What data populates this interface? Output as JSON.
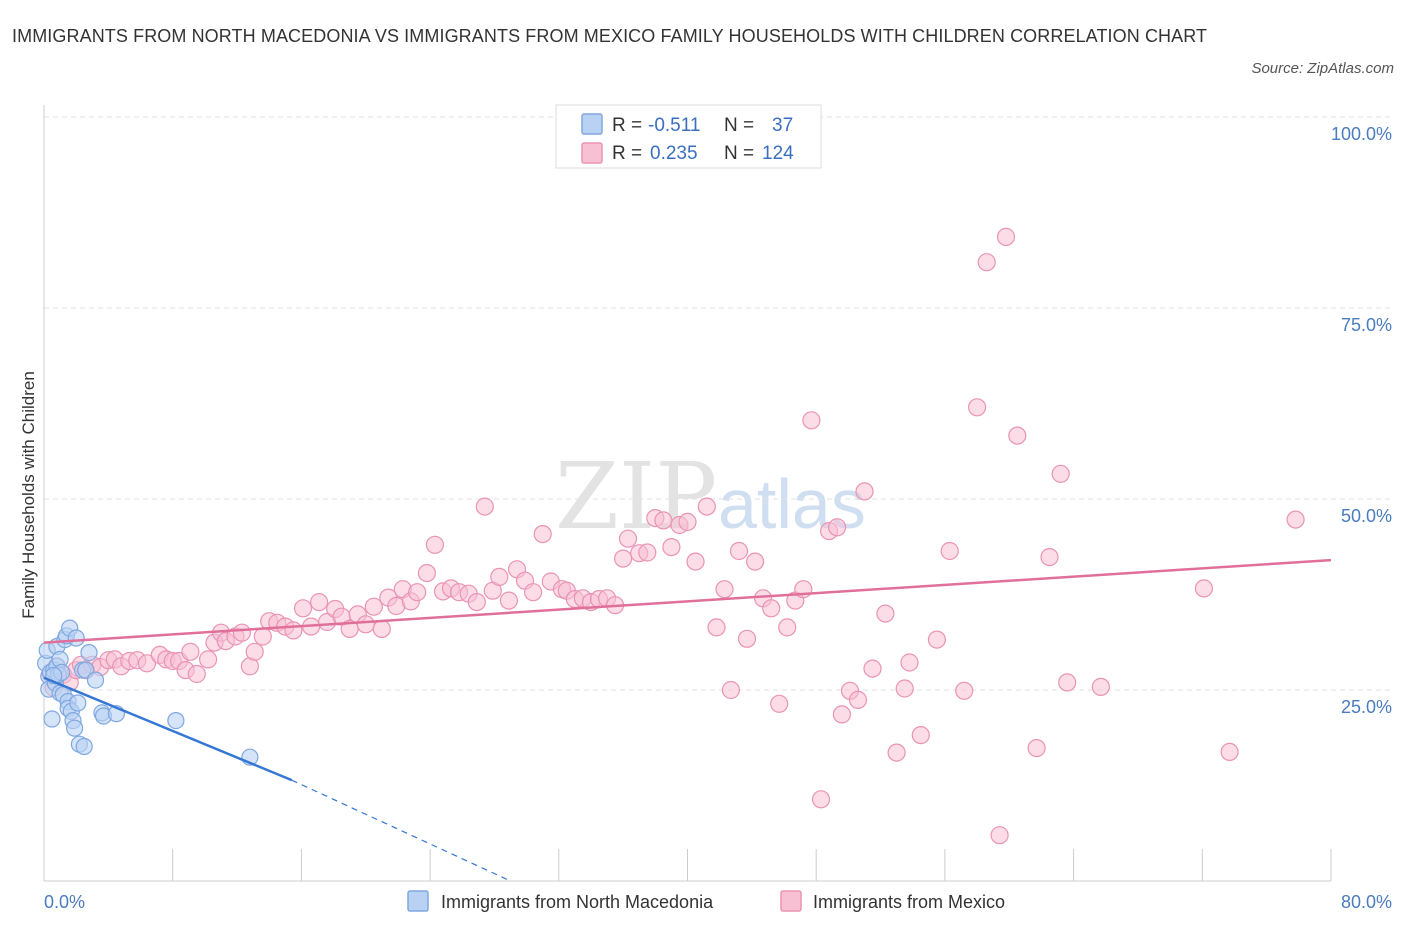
{
  "title": "IMMIGRANTS FROM NORTH MACEDONIA VS IMMIGRANTS FROM MEXICO FAMILY HOUSEHOLDS WITH CHILDREN CORRELATION CHART",
  "source": "Source: ZipAtlas.com",
  "watermark": {
    "zip": "ZIP",
    "atlas": "atlas"
  },
  "legend": {
    "r_label": "R =",
    "n_label": "N =",
    "series1": {
      "r": "-0.511",
      "n": "37"
    },
    "series2": {
      "r": "0.235",
      "n": "124"
    }
  },
  "colors": {
    "blue_fill": "#b9d2f3",
    "blue_stroke": "#7fa8e0",
    "blue_line": "#3477d4",
    "pink_fill": "#f7c0d3",
    "pink_stroke": "#ea94b4",
    "pink_line": "#e0709a"
  },
  "chart_data": {
    "type": "scatter",
    "title": "IMMIGRANTS FROM NORTH MACEDONIA VS IMMIGRANTS FROM MEXICO FAMILY HOUSEHOLDS WITH CHILDREN CORRELATION CHART",
    "ylabel": "Family Households with Children",
    "xlabel": "",
    "xlim": [
      0,
      80
    ],
    "ylim": [
      0,
      100
    ],
    "x_tick_labels": [
      {
        "value": 0,
        "label": "0.0%"
      },
      {
        "value": 80,
        "label": "80.0%"
      }
    ],
    "y_tick_labels": [
      {
        "value": 25,
        "label": "25.0%"
      },
      {
        "value": 50,
        "label": "50.0%"
      },
      {
        "value": 75,
        "label": "75.0%"
      },
      {
        "value": 100,
        "label": "100.0%"
      }
    ],
    "series": [
      {
        "name": "Immigrants from North Macedonia",
        "R": -0.511,
        "N": 37,
        "points": [
          [
            0.1,
            28.5
          ],
          [
            0.2,
            30.2
          ],
          [
            0.3,
            26.8
          ],
          [
            0.3,
            25.1
          ],
          [
            0.4,
            27.3
          ],
          [
            0.5,
            21.2
          ],
          [
            0.6,
            27.6
          ],
          [
            0.7,
            25.9
          ],
          [
            0.8,
            30.7
          ],
          [
            0.8,
            28.1
          ],
          [
            0.9,
            27.0
          ],
          [
            1.0,
            29.0
          ],
          [
            1.0,
            24.6
          ],
          [
            1.1,
            27.3
          ],
          [
            1.2,
            24.4
          ],
          [
            1.3,
            31.6
          ],
          [
            1.4,
            32.1
          ],
          [
            1.5,
            23.5
          ],
          [
            1.5,
            22.6
          ],
          [
            1.6,
            33.1
          ],
          [
            1.7,
            22.2
          ],
          [
            1.8,
            21.0
          ],
          [
            1.9,
            20.0
          ],
          [
            2.0,
            31.8
          ],
          [
            2.1,
            23.3
          ],
          [
            2.2,
            17.9
          ],
          [
            2.4,
            27.6
          ],
          [
            2.5,
            17.6
          ],
          [
            2.6,
            27.6
          ],
          [
            2.8,
            29.9
          ],
          [
            3.2,
            26.3
          ],
          [
            3.6,
            22.0
          ],
          [
            3.7,
            21.6
          ],
          [
            4.5,
            21.9
          ],
          [
            8.2,
            21.0
          ],
          [
            12.8,
            16.2
          ],
          [
            0.6,
            26.9
          ]
        ],
        "trend": {
          "x1": 0.0,
          "y1": 26.6,
          "x2": 15.4,
          "y2": 13.2,
          "dash_to_x": 29.0,
          "dash_to_y": 0.0
        }
      },
      {
        "name": "Immigrants from Mexico",
        "R": 0.235,
        "N": 124,
        "points": [
          [
            0.4,
            27.2
          ],
          [
            0.6,
            25.3
          ],
          [
            0.8,
            28.1
          ],
          [
            1.2,
            27.0
          ],
          [
            1.6,
            26.0
          ],
          [
            2.0,
            27.6
          ],
          [
            2.3,
            28.3
          ],
          [
            2.6,
            27.6
          ],
          [
            3.0,
            28.3
          ],
          [
            3.5,
            28.0
          ],
          [
            4.0,
            28.9
          ],
          [
            4.4,
            29.0
          ],
          [
            4.8,
            28.1
          ],
          [
            5.3,
            28.8
          ],
          [
            5.8,
            28.9
          ],
          [
            6.4,
            28.5
          ],
          [
            7.2,
            29.6
          ],
          [
            7.6,
            29.0
          ],
          [
            8.0,
            28.8
          ],
          [
            8.4,
            28.8
          ],
          [
            8.8,
            27.6
          ],
          [
            9.1,
            30.0
          ],
          [
            9.5,
            27.1
          ],
          [
            10.2,
            29.0
          ],
          [
            10.6,
            31.2
          ],
          [
            11.0,
            32.5
          ],
          [
            11.3,
            31.4
          ],
          [
            11.9,
            32.0
          ],
          [
            12.3,
            32.5
          ],
          [
            12.8,
            28.1
          ],
          [
            13.1,
            30.0
          ],
          [
            13.6,
            32.0
          ],
          [
            14.0,
            34.0
          ],
          [
            14.5,
            33.8
          ],
          [
            15.0,
            33.3
          ],
          [
            15.5,
            32.8
          ],
          [
            16.1,
            35.7
          ],
          [
            16.6,
            33.3
          ],
          [
            17.1,
            36.5
          ],
          [
            17.6,
            33.9
          ],
          [
            18.1,
            35.6
          ],
          [
            18.5,
            34.6
          ],
          [
            19.0,
            33.0
          ],
          [
            19.5,
            34.9
          ],
          [
            20.0,
            33.6
          ],
          [
            20.5,
            35.9
          ],
          [
            21.0,
            33.0
          ],
          [
            21.4,
            37.1
          ],
          [
            21.9,
            36.0
          ],
          [
            22.3,
            38.2
          ],
          [
            22.8,
            36.6
          ],
          [
            23.2,
            37.8
          ],
          [
            23.8,
            40.3
          ],
          [
            24.3,
            44.0
          ],
          [
            24.8,
            37.9
          ],
          [
            25.3,
            38.3
          ],
          [
            25.8,
            37.8
          ],
          [
            26.4,
            37.6
          ],
          [
            26.9,
            36.5
          ],
          [
            27.4,
            49.0
          ],
          [
            27.9,
            38.0
          ],
          [
            28.3,
            39.8
          ],
          [
            28.9,
            36.7
          ],
          [
            29.4,
            40.8
          ],
          [
            29.9,
            39.3
          ],
          [
            30.4,
            37.8
          ],
          [
            31.0,
            45.4
          ],
          [
            31.5,
            39.2
          ],
          [
            32.2,
            38.2
          ],
          [
            32.5,
            38.0
          ],
          [
            33.0,
            36.9
          ],
          [
            33.5,
            37.0
          ],
          [
            34.0,
            36.5
          ],
          [
            34.5,
            36.9
          ],
          [
            35.0,
            37.0
          ],
          [
            35.5,
            36.1
          ],
          [
            36.0,
            42.2
          ],
          [
            36.3,
            44.8
          ],
          [
            37.0,
            42.9
          ],
          [
            37.5,
            43.0
          ],
          [
            38.0,
            47.5
          ],
          [
            38.5,
            47.2
          ],
          [
            39.0,
            43.7
          ],
          [
            39.5,
            46.6
          ],
          [
            40.0,
            47.0
          ],
          [
            40.5,
            41.8
          ],
          [
            41.2,
            49.0
          ],
          [
            41.8,
            33.2
          ],
          [
            42.3,
            38.2
          ],
          [
            42.7,
            25.0
          ],
          [
            43.2,
            43.2
          ],
          [
            43.7,
            31.7
          ],
          [
            44.2,
            41.8
          ],
          [
            44.7,
            37.0
          ],
          [
            45.2,
            35.7
          ],
          [
            45.7,
            23.2
          ],
          [
            46.2,
            33.2
          ],
          [
            46.7,
            36.7
          ],
          [
            47.2,
            38.2
          ],
          [
            47.7,
            60.3
          ],
          [
            48.3,
            10.7
          ],
          [
            48.8,
            45.8
          ],
          [
            49.3,
            46.3
          ],
          [
            49.6,
            21.8
          ],
          [
            50.1,
            24.9
          ],
          [
            50.6,
            23.7
          ],
          [
            51.0,
            51.0
          ],
          [
            51.5,
            27.8
          ],
          [
            52.3,
            35.0
          ],
          [
            53.0,
            16.8
          ],
          [
            53.5,
            25.2
          ],
          [
            53.8,
            28.6
          ],
          [
            54.5,
            19.1
          ],
          [
            55.5,
            31.6
          ],
          [
            56.3,
            43.2
          ],
          [
            57.2,
            24.9
          ],
          [
            58.0,
            62.0
          ],
          [
            58.6,
            81.0
          ],
          [
            59.4,
            6.0
          ],
          [
            59.8,
            84.3
          ],
          [
            60.5,
            58.3
          ],
          [
            61.7,
            17.4
          ],
          [
            62.5,
            42.4
          ],
          [
            63.2,
            53.3
          ],
          [
            63.6,
            26.0
          ],
          [
            65.7,
            25.4
          ],
          [
            72.1,
            38.3
          ],
          [
            73.7,
            16.9
          ],
          [
            77.8,
            47.3
          ]
        ],
        "trend": {
          "x1": 0.0,
          "y1": 31.2,
          "x2": 80.0,
          "y2": 42.0
        }
      }
    ]
  }
}
